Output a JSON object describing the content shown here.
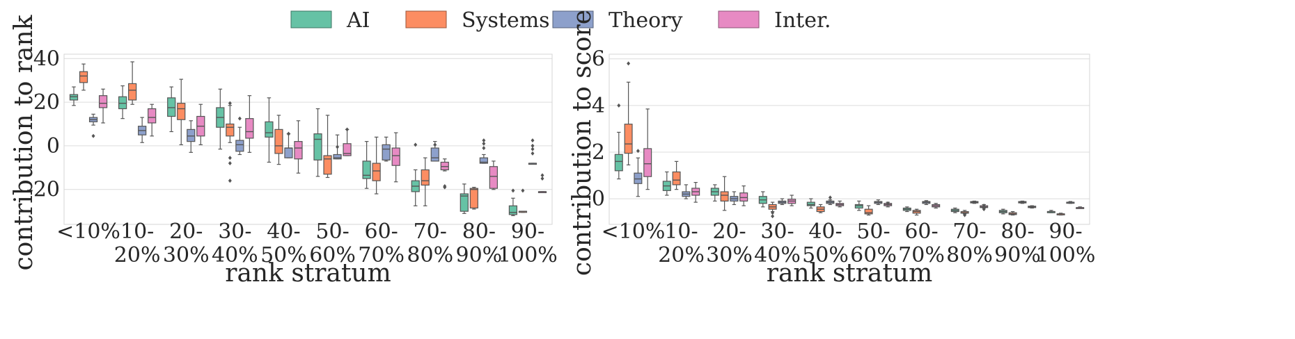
{
  "legend": {
    "placement": "top-center",
    "entries": [
      {
        "name": "AI",
        "color": "#66c2a5"
      },
      {
        "name": "Systems",
        "color": "#fc8d62"
      },
      {
        "name": "Theory",
        "color": "#8da0cb"
      },
      {
        "name": "Inter.",
        "color": "#e78ac3"
      }
    ]
  },
  "chart_data": [
    {
      "type": "box",
      "xlabel": "rank stratum",
      "ylabel": "contribution to rank",
      "ylim": [
        -36,
        42
      ],
      "yticks": [
        -20,
        0,
        20,
        40
      ],
      "grid": true,
      "categories": [
        [
          "<10%"
        ],
        [
          "10-",
          "20%"
        ],
        [
          "20-",
          "30%"
        ],
        [
          "30-",
          "40%"
        ],
        [
          "40-",
          "50%"
        ],
        [
          "50-",
          "60%"
        ],
        [
          "60-",
          "70%"
        ],
        [
          "70-",
          "80%"
        ],
        [
          "80-",
          "90%"
        ],
        [
          "90-",
          "100%"
        ]
      ],
      "series": [
        {
          "name": "AI",
          "boxes": [
            {
              "whislo": 18.5,
              "q1": 21,
              "med": 22.5,
              "q3": 23.5,
              "whishi": 27,
              "fliers": []
            },
            {
              "whislo": 12.5,
              "q1": 17,
              "med": 19.5,
              "q3": 22.5,
              "whishi": 27.5,
              "fliers": []
            },
            {
              "whislo": 6.5,
              "q1": 13.5,
              "med": 17.5,
              "q3": 22,
              "whishi": 27,
              "fliers": []
            },
            {
              "whislo": -1.5,
              "q1": 8.5,
              "med": 13,
              "q3": 17.5,
              "whishi": 26,
              "fliers": []
            },
            {
              "whislo": -7.5,
              "q1": 4,
              "med": 6,
              "q3": 11,
              "whishi": 22,
              "fliers": []
            },
            {
              "whislo": -14,
              "q1": -6.5,
              "med": 3,
              "q3": 5.5,
              "whishi": 17,
              "fliers": []
            },
            {
              "whislo": -19.5,
              "q1": -15,
              "med": -13.5,
              "q3": -7,
              "whishi": 2,
              "fliers": []
            },
            {
              "whislo": -27.5,
              "q1": -21,
              "med": -18.5,
              "q3": -16,
              "whishi": -11,
              "fliers": [
                0.5
              ]
            },
            {
              "whislo": -31,
              "q1": -30,
              "med": -23,
              "q3": -22,
              "whishi": -17.5,
              "fliers": []
            },
            {
              "whislo": -32,
              "q1": -31.5,
              "med": -30.5,
              "q3": -27.5,
              "whishi": -24,
              "fliers": [
                -20.5
              ]
            }
          ]
        },
        {
          "name": "Systems",
          "boxes": [
            {
              "whislo": 25.5,
              "q1": 29,
              "med": 32,
              "q3": 34,
              "whishi": 37.5,
              "fliers": []
            },
            {
              "whislo": 19,
              "q1": 21,
              "med": 25.5,
              "q3": 28.5,
              "whishi": 38.5,
              "fliers": []
            },
            {
              "whislo": 0.5,
              "q1": 12,
              "med": 17,
              "q3": 19.5,
              "whishi": 30.5,
              "fliers": []
            },
            {
              "whislo": 1.5,
              "q1": 4.5,
              "med": 8.5,
              "q3": 10,
              "whishi": 18.5,
              "fliers": [
                19.5,
                -5.5,
                -8,
                -16
              ]
            },
            {
              "whislo": -8.5,
              "q1": -3.5,
              "med": 0,
              "q3": 7.5,
              "whishi": 14,
              "fliers": []
            },
            {
              "whislo": -14.5,
              "q1": -13,
              "med": -6,
              "q3": -4.5,
              "whishi": 14,
              "fliers": []
            },
            {
              "whislo": -22,
              "q1": -16,
              "med": -11.5,
              "q3": -8,
              "whishi": 4,
              "fliers": []
            },
            {
              "whislo": -27.5,
              "q1": -18,
              "med": -16,
              "q3": -11,
              "whishi": -5.5,
              "fliers": []
            },
            {
              "whislo": -29,
              "q1": -28.5,
              "med": -20,
              "q3": -19.5,
              "whishi": -19,
              "fliers": []
            },
            {
              "whislo": -30.5,
              "q1": -30.5,
              "med": -30,
              "q3": -30,
              "whishi": -30,
              "fliers": [
                -20.5
              ]
            }
          ]
        },
        {
          "name": "Theory",
          "boxes": [
            {
              "whislo": 9.5,
              "q1": 11,
              "med": 12,
              "q3": 13,
              "whishi": 14.5,
              "fliers": [
                4.5
              ]
            },
            {
              "whislo": 1.5,
              "q1": 5,
              "med": 7,
              "q3": 9,
              "whishi": 13,
              "fliers": []
            },
            {
              "whislo": -3,
              "q1": 2,
              "med": 4.5,
              "q3": 7.5,
              "whishi": 11.5,
              "fliers": []
            },
            {
              "whislo": -4,
              "q1": -2.5,
              "med": 0.5,
              "q3": 2.5,
              "whishi": 8.5,
              "fliers": [
                12.5
              ]
            },
            {
              "whislo": -5.5,
              "q1": -5.5,
              "med": -1,
              "q3": -1,
              "whishi": 5.5,
              "fliers": [
                5.5,
                5.5
              ]
            },
            {
              "whislo": -6,
              "q1": -6,
              "med": -5.5,
              "q3": -4,
              "whishi": 5,
              "fliers": [
                -0.5
              ]
            },
            {
              "whislo": -7,
              "q1": -6.5,
              "med": -1.5,
              "q3": 0.5,
              "whishi": 4,
              "fliers": []
            },
            {
              "whislo": -7,
              "q1": -7,
              "med": -5.5,
              "q3": -1,
              "whishi": 2,
              "fliers": [
                0.5
              ]
            },
            {
              "whislo": -8,
              "q1": -8,
              "med": -7.5,
              "q3": -5.5,
              "whishi": -4,
              "fliers": [
                -1,
                1,
                2.5
              ]
            },
            {
              "whislo": -8,
              "q1": -8,
              "med": -8,
              "q3": -8,
              "whishi": -8,
              "fliers": [
                -3.5,
                -1.5,
                0,
                2.5
              ]
            }
          ]
        },
        {
          "name": "Inter.",
          "boxes": [
            {
              "whislo": 10.5,
              "q1": 17.5,
              "med": 19.5,
              "q3": 23,
              "whishi": 26,
              "fliers": []
            },
            {
              "whislo": 4.5,
              "q1": 10.5,
              "med": 13,
              "q3": 17,
              "whishi": 19,
              "fliers": []
            },
            {
              "whislo": 0.5,
              "q1": 4.5,
              "med": 9,
              "q3": 13.5,
              "whishi": 19,
              "fliers": []
            },
            {
              "whislo": -3,
              "q1": 3.5,
              "med": 6.5,
              "q3": 12.5,
              "whishi": 23,
              "fliers": []
            },
            {
              "whislo": -12.5,
              "q1": -6,
              "med": -1,
              "q3": 2,
              "whishi": 11.5,
              "fliers": []
            },
            {
              "whislo": -4.5,
              "q1": -4.5,
              "med": -3.5,
              "q3": 1,
              "whishi": 7.5,
              "fliers": [
                7.5
              ]
            },
            {
              "whislo": -16.5,
              "q1": -9,
              "med": -4.5,
              "q3": -1,
              "whishi": 6,
              "fliers": []
            },
            {
              "whislo": -11.5,
              "q1": -11,
              "med": -9.5,
              "q3": -7.5,
              "whishi": -6,
              "fliers": [
                -19,
                -18.5
              ]
            },
            {
              "whislo": -20,
              "q1": -19.5,
              "med": -14,
              "q3": -9.5,
              "whishi": -7,
              "fliers": []
            },
            {
              "whislo": -21,
              "q1": -21,
              "med": -21,
              "q3": -21,
              "whishi": -21,
              "fliers": [
                -15,
                -13.5
              ]
            }
          ]
        }
      ]
    },
    {
      "type": "box",
      "xlabel": "rank stratum",
      "ylabel": "contribution to score",
      "ylim": [
        -1.1,
        6.2
      ],
      "yticks": [
        0,
        2,
        4,
        6
      ],
      "grid": true,
      "categories": [
        [
          "<10%"
        ],
        [
          "10-",
          "20%"
        ],
        [
          "20-",
          "30%"
        ],
        [
          "30-",
          "40%"
        ],
        [
          "40-",
          "50%"
        ],
        [
          "50-",
          "60%"
        ],
        [
          "60-",
          "70%"
        ],
        [
          "70-",
          "80%"
        ],
        [
          "80-",
          "90%"
        ],
        [
          "90-",
          "100%"
        ]
      ],
      "series": [
        {
          "name": "AI",
          "boxes": [
            {
              "whislo": 0.85,
              "q1": 1.2,
              "med": 1.6,
              "q3": 1.9,
              "whishi": 2.85,
              "fliers": [
                4.0
              ]
            },
            {
              "whislo": 0.15,
              "q1": 0.35,
              "med": 0.55,
              "q3": 0.75,
              "whishi": 1.15,
              "fliers": []
            },
            {
              "whislo": -0.1,
              "q1": 0.15,
              "med": 0.3,
              "q3": 0.45,
              "whishi": 0.6,
              "fliers": []
            },
            {
              "whislo": -0.35,
              "q1": -0.2,
              "med": -0.05,
              "q3": 0.1,
              "whishi": 0.3,
              "fliers": []
            },
            {
              "whislo": -0.4,
              "q1": -0.3,
              "med": -0.25,
              "q3": -0.15,
              "whishi": 0.0,
              "fliers": []
            },
            {
              "whislo": -0.5,
              "q1": -0.4,
              "med": -0.3,
              "q3": -0.25,
              "whishi": -0.1,
              "fliers": []
            },
            {
              "whislo": -0.55,
              "q1": -0.5,
              "med": -0.45,
              "q3": -0.4,
              "whishi": -0.35,
              "fliers": []
            },
            {
              "whislo": -0.6,
              "q1": -0.55,
              "med": -0.5,
              "q3": -0.45,
              "whishi": -0.4,
              "fliers": []
            },
            {
              "whislo": -0.65,
              "q1": -0.6,
              "med": -0.55,
              "q3": -0.5,
              "whishi": -0.45,
              "fliers": []
            },
            {
              "whislo": -0.6,
              "q1": -0.6,
              "med": -0.55,
              "q3": -0.55,
              "whishi": -0.5,
              "fliers": []
            }
          ]
        },
        {
          "name": "Systems",
          "boxes": [
            {
              "whislo": 1.45,
              "q1": 1.95,
              "med": 2.35,
              "q3": 3.2,
              "whishi": 5.0,
              "fliers": [
                5.8
              ]
            },
            {
              "whislo": 0.4,
              "q1": 0.6,
              "med": 0.8,
              "q3": 1.15,
              "whishi": 1.6,
              "fliers": []
            },
            {
              "whislo": -0.5,
              "q1": -0.1,
              "med": 0.15,
              "q3": 0.3,
              "whishi": 0.95,
              "fliers": []
            },
            {
              "whislo": -0.55,
              "q1": -0.45,
              "med": -0.35,
              "q3": -0.25,
              "whishi": -0.15,
              "fliers": [
                -0.6,
                -0.75
              ]
            },
            {
              "whislo": -0.6,
              "q1": -0.55,
              "med": -0.45,
              "q3": -0.35,
              "whishi": -0.25,
              "fliers": []
            },
            {
              "whislo": -0.7,
              "q1": -0.65,
              "med": -0.6,
              "q3": -0.45,
              "whishi": -0.3,
              "fliers": []
            },
            {
              "whislo": -0.7,
              "q1": -0.62,
              "med": -0.55,
              "q3": -0.5,
              "whishi": -0.45,
              "fliers": []
            },
            {
              "whislo": -0.65,
              "q1": -0.62,
              "med": -0.6,
              "q3": -0.55,
              "whishi": -0.5,
              "fliers": [
                -0.7
              ]
            },
            {
              "whislo": -0.7,
              "q1": -0.68,
              "med": -0.65,
              "q3": -0.6,
              "whishi": -0.55,
              "fliers": []
            },
            {
              "whislo": -0.7,
              "q1": -0.68,
              "med": -0.65,
              "q3": -0.65,
              "whishi": -0.62,
              "fliers": []
            }
          ]
        },
        {
          "name": "Theory",
          "boxes": [
            {
              "whislo": 0.1,
              "q1": 0.65,
              "med": 0.85,
              "q3": 1.1,
              "whishi": 1.75,
              "fliers": [
                2.05
              ]
            },
            {
              "whislo": 0.0,
              "q1": 0.1,
              "med": 0.2,
              "q3": 0.3,
              "whishi": 0.6,
              "fliers": []
            },
            {
              "whislo": -0.25,
              "q1": -0.1,
              "med": 0.0,
              "q3": 0.1,
              "whishi": 0.3,
              "fliers": []
            },
            {
              "whislo": -0.25,
              "q1": -0.2,
              "med": -0.15,
              "q3": -0.1,
              "whishi": 0.0,
              "fliers": []
            },
            {
              "whislo": -0.25,
              "q1": -0.2,
              "med": -0.15,
              "q3": -0.1,
              "whishi": -0.05,
              "fliers": [
                0.05
              ]
            },
            {
              "whislo": -0.25,
              "q1": -0.2,
              "med": -0.15,
              "q3": -0.12,
              "whishi": -0.05,
              "fliers": []
            },
            {
              "whislo": -0.25,
              "q1": -0.2,
              "med": -0.15,
              "q3": -0.12,
              "whishi": -0.08,
              "fliers": []
            },
            {
              "whislo": -0.2,
              "q1": -0.18,
              "med": -0.15,
              "q3": -0.12,
              "whishi": -0.1,
              "fliers": []
            },
            {
              "whislo": -0.2,
              "q1": -0.18,
              "med": -0.15,
              "q3": -0.12,
              "whishi": -0.1,
              "fliers": []
            },
            {
              "whislo": -0.2,
              "q1": -0.18,
              "med": -0.15,
              "q3": -0.15,
              "whishi": -0.12,
              "fliers": []
            }
          ]
        },
        {
          "name": "Inter.",
          "boxes": [
            {
              "whislo": 0.4,
              "q1": 0.95,
              "med": 1.5,
              "q3": 2.15,
              "whishi": 3.85,
              "fliers": []
            },
            {
              "whislo": -0.15,
              "q1": 0.15,
              "med": 0.3,
              "q3": 0.45,
              "whishi": 0.7,
              "fliers": []
            },
            {
              "whislo": -0.3,
              "q1": -0.1,
              "med": 0.05,
              "q3": 0.25,
              "whishi": 0.55,
              "fliers": []
            },
            {
              "whislo": -0.3,
              "q1": -0.2,
              "med": -0.1,
              "q3": -0.02,
              "whishi": 0.15,
              "fliers": []
            },
            {
              "whislo": -0.35,
              "q1": -0.3,
              "med": -0.25,
              "q3": -0.2,
              "whishi": -0.1,
              "fliers": []
            },
            {
              "whislo": -0.35,
              "q1": -0.3,
              "med": -0.25,
              "q3": -0.2,
              "whishi": -0.15,
              "fliers": [
                -0.2
              ]
            },
            {
              "whislo": -0.4,
              "q1": -0.35,
              "med": -0.3,
              "q3": -0.25,
              "whishi": -0.2,
              "fliers": []
            },
            {
              "whislo": -0.4,
              "q1": -0.38,
              "med": -0.35,
              "q3": -0.3,
              "whishi": -0.25,
              "fliers": [
                -0.45,
                -0.3
              ]
            },
            {
              "whislo": -0.4,
              "q1": -0.38,
              "med": -0.35,
              "q3": -0.32,
              "whishi": -0.3,
              "fliers": []
            },
            {
              "whislo": -0.4,
              "q1": -0.4,
              "med": -0.38,
              "q3": -0.38,
              "whishi": -0.35,
              "fliers": []
            }
          ]
        }
      ]
    }
  ]
}
